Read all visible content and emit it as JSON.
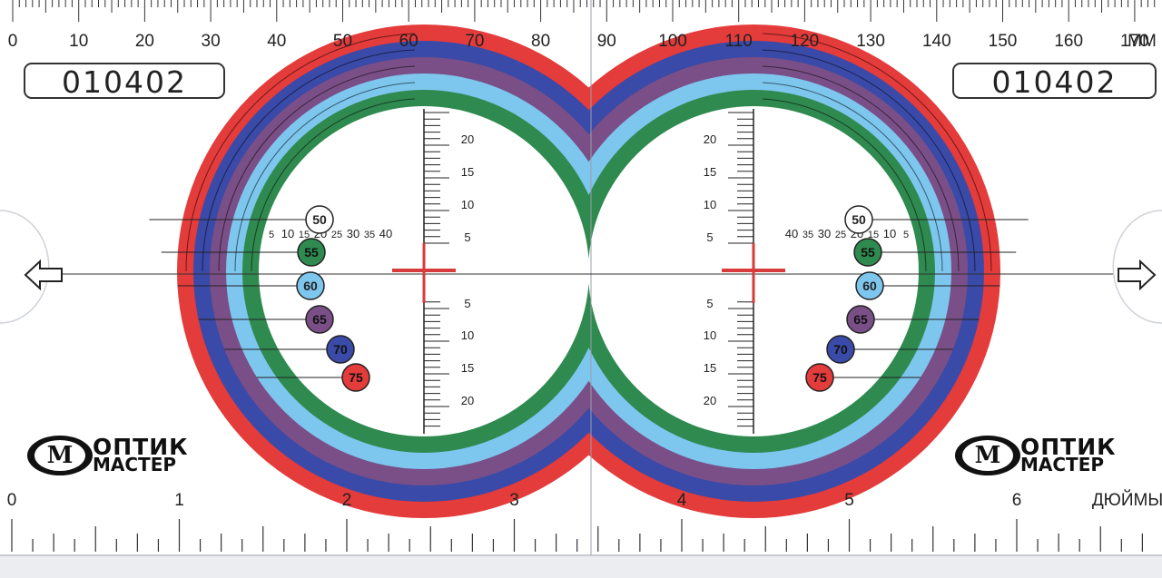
{
  "ruler_mm": {
    "labels": [
      "0",
      "10",
      "20",
      "30",
      "40",
      "50",
      "60",
      "70",
      "80",
      "90",
      "100",
      "110",
      "120",
      "130",
      "140",
      "150",
      "160",
      "170"
    ],
    "unit": "MM"
  },
  "ruler_inch": {
    "labels": [
      "0",
      "1",
      "2",
      "3",
      "4",
      "5",
      "6"
    ],
    "unit": "ДЮЙМЫ"
  },
  "serial_left": "010402",
  "serial_right": "010402",
  "brand": {
    "line1": "ОПТИК",
    "line2": "МАСТЕР",
    "emblem": "M"
  },
  "sizes": [
    {
      "label": "50",
      "color": "#ffffff"
    },
    {
      "label": "55",
      "color": "#2f8a4f"
    },
    {
      "label": "60",
      "color": "#7dc6ee"
    },
    {
      "label": "65",
      "color": "#7a4f87"
    },
    {
      "label": "70",
      "color": "#3a4aa8"
    },
    {
      "label": "75",
      "color": "#e43b3b"
    }
  ],
  "scale_horizontal": [
    "40",
    "35",
    "30",
    "25",
    "20",
    "15",
    "10",
    "5"
  ],
  "scale_vertical": [
    "20",
    "15",
    "10",
    "5",
    "5",
    "10",
    "15",
    "20"
  ],
  "icons": [
    "arrow-left-icon",
    "arrow-right-icon",
    "crosshair-icon"
  ]
}
